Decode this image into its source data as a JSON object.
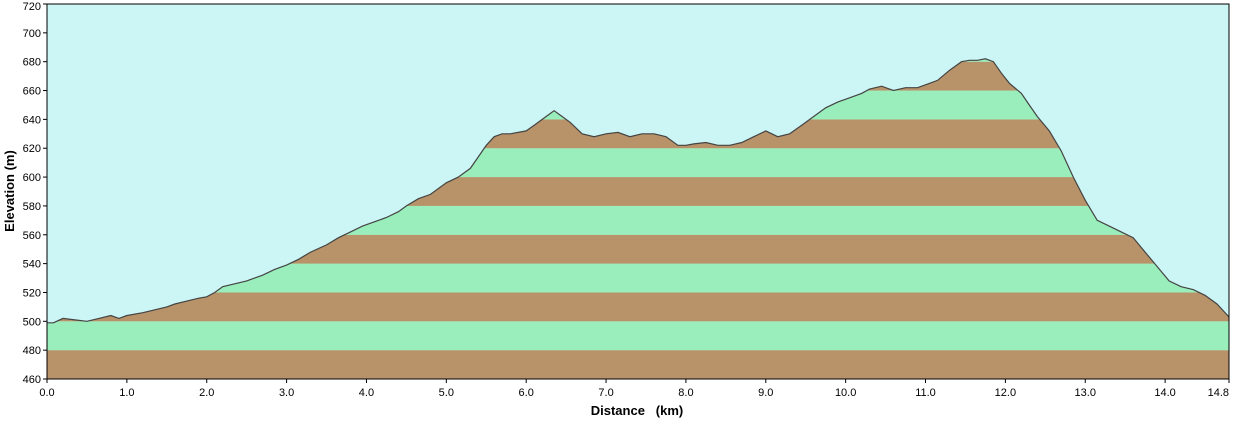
{
  "colors": {
    "sky": "#ccf5f5",
    "band_green": "#99eebb",
    "band_brown": "#b89268",
    "profile_line": "#444444",
    "frame": "#000000"
  },
  "chart_data": {
    "type": "area",
    "title": "",
    "xlabel": "Distance   (km)",
    "ylabel": "Elevation (m)",
    "xlim": [
      0.0,
      14.8
    ],
    "ylim": [
      460,
      720
    ],
    "grid": false,
    "x_ticks": [
      "0.0",
      "1.0",
      "2.0",
      "3.0",
      "4.0",
      "5.0",
      "6.0",
      "7.0",
      "8.0",
      "9.0",
      "10.0",
      "11.0",
      "12.0",
      "13.0",
      "14.0",
      "14.8"
    ],
    "y_ticks": [
      "460",
      "480",
      "500",
      "520",
      "540",
      "560",
      "580",
      "600",
      "620",
      "640",
      "660",
      "680",
      "700",
      "720"
    ],
    "band_step": 20,
    "series": [
      {
        "x": [
          0.0,
          0.08,
          0.2,
          0.35,
          0.5,
          0.65,
          0.8,
          0.9,
          1.0,
          1.2,
          1.35,
          1.5,
          1.6,
          1.75,
          1.9,
          2.0,
          2.1,
          2.2,
          2.35,
          2.5,
          2.7,
          2.85,
          3.0,
          3.15,
          3.3,
          3.5,
          3.65,
          3.8,
          3.95,
          4.1,
          4.25,
          4.4,
          4.5,
          4.65,
          4.8,
          5.0,
          5.15,
          5.3,
          5.4,
          5.5,
          5.6,
          5.7,
          5.8,
          6.0,
          6.1,
          6.2,
          6.3,
          6.35,
          6.45,
          6.55,
          6.7,
          6.85,
          7.0,
          7.15,
          7.3,
          7.45,
          7.6,
          7.75,
          7.9,
          8.0,
          8.1,
          8.25,
          8.4,
          8.55,
          8.7,
          8.85,
          9.0,
          9.15,
          9.3,
          9.45,
          9.6,
          9.75,
          9.9,
          10.05,
          10.2,
          10.3,
          10.45,
          10.6,
          10.75,
          10.9,
          11.0,
          11.15,
          11.3,
          11.45,
          11.55,
          11.65,
          11.75,
          11.85,
          11.95,
          12.05,
          12.2,
          12.3,
          12.4,
          12.55,
          12.7,
          12.85,
          13.0,
          13.15,
          13.3,
          13.45,
          13.6,
          13.75,
          13.9,
          14.05,
          14.2,
          14.35,
          14.5,
          14.65,
          14.8
        ],
        "values": [
          499,
          499,
          502,
          501,
          500,
          502,
          504,
          502,
          504,
          506,
          508,
          510,
          512,
          514,
          516,
          517,
          520,
          524,
          526,
          528,
          532,
          536,
          539,
          543,
          548,
          553,
          558,
          562,
          566,
          569,
          572,
          576,
          580,
          585,
          588,
          596,
          600,
          606,
          614,
          622,
          628,
          630,
          630,
          632,
          636,
          640,
          644,
          646,
          642,
          638,
          630,
          628,
          630,
          631,
          628,
          630,
          630,
          628,
          622,
          622,
          623,
          624,
          622,
          622,
          624,
          628,
          632,
          628,
          630,
          636,
          642,
          648,
          652,
          655,
          658,
          661,
          663,
          660,
          662,
          662,
          664,
          667,
          674,
          680,
          681,
          681,
          682,
          680,
          672,
          665,
          658,
          650,
          642,
          632,
          618,
          600,
          584,
          570,
          566,
          562,
          558,
          548,
          538,
          528,
          524,
          522,
          518,
          512,
          503
        ]
      }
    ]
  }
}
